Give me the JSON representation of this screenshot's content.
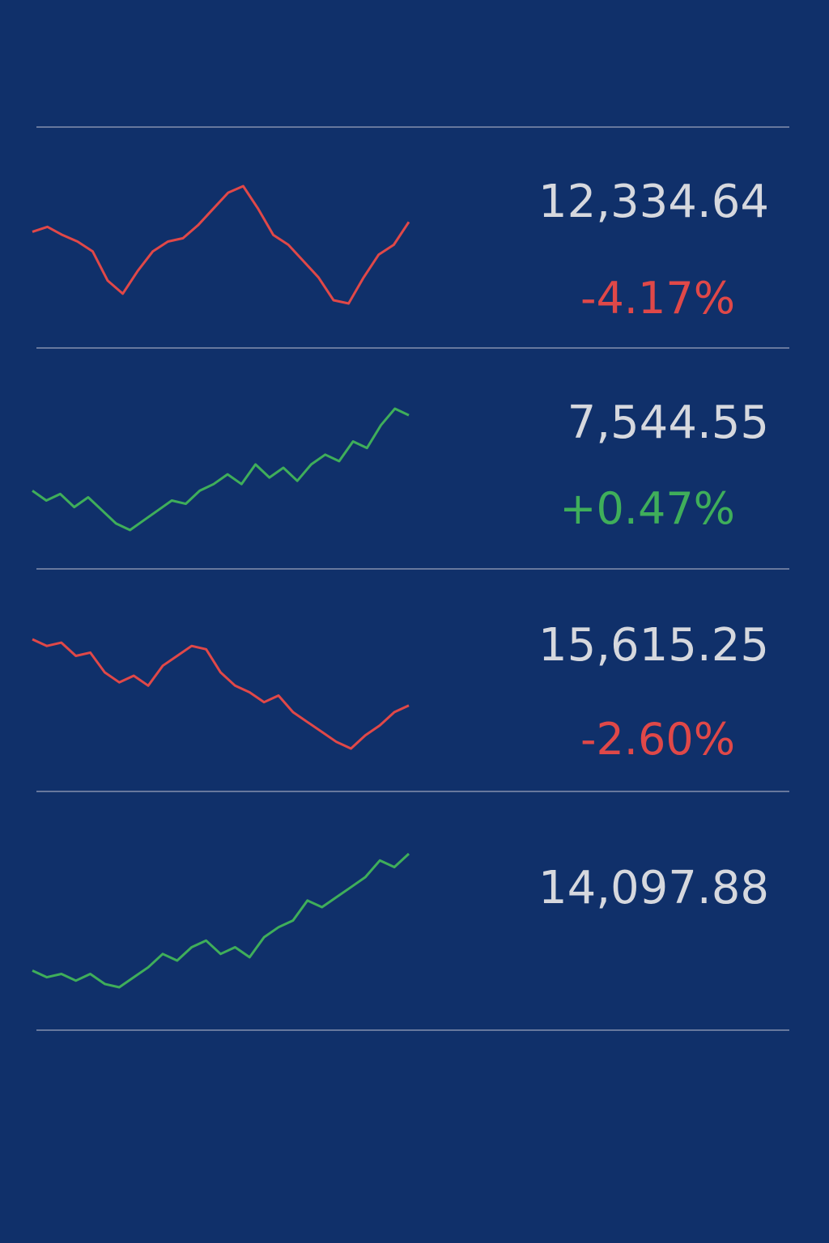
{
  "rows": [
    {
      "price": "12,334.64",
      "change": "-4.17%",
      "color": "#e04848",
      "spark": [
        52,
        55,
        50,
        46,
        40,
        22,
        14,
        28,
        40,
        46,
        48,
        56,
        66,
        76,
        80,
        66,
        50,
        44,
        34,
        24,
        10,
        8,
        24,
        38,
        44,
        58
      ]
    },
    {
      "price": "7,544.55",
      "change": "+0.47%",
      "color": "#3fae5a",
      "spark": [
        40,
        34,
        38,
        30,
        36,
        28,
        20,
        16,
        22,
        28,
        34,
        32,
        40,
        44,
        50,
        44,
        56,
        48,
        54,
        46,
        56,
        62,
        58,
        70,
        66,
        80,
        90,
        86
      ]
    },
    {
      "price": "15,615.25",
      "change": "-2.60%",
      "color": "#e04848",
      "spark": [
        80,
        76,
        78,
        70,
        72,
        60,
        54,
        58,
        52,
        64,
        70,
        76,
        74,
        60,
        52,
        48,
        42,
        46,
        36,
        30,
        24,
        18,
        14,
        22,
        28,
        36,
        40
      ]
    },
    {
      "price": "14,097.88",
      "color": "#3fae5a",
      "spark": [
        20,
        16,
        18,
        14,
        18,
        12,
        10,
        16,
        22,
        30,
        26,
        34,
        38,
        30,
        34,
        28,
        40,
        46,
        50,
        62,
        58,
        64,
        70,
        76,
        86,
        82,
        90
      ]
    }
  ]
}
